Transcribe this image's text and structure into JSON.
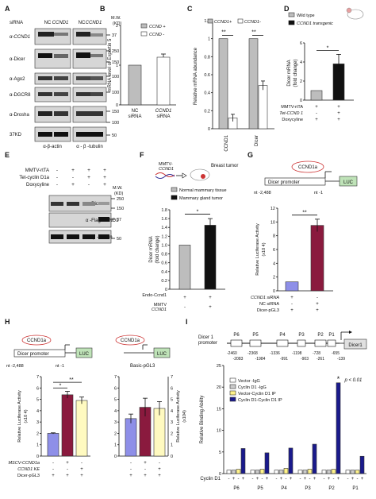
{
  "panels": [
    "A",
    "B",
    "C",
    "D",
    "E",
    "F",
    "G",
    "H",
    "I"
  ],
  "panelA": {
    "siRNA_label": "siRNA",
    "nc": "NC",
    "ccnd1": "CCND1",
    "mw_label": "M.W.\n(KD)",
    "rows": [
      "α-CCND1",
      "α-Dicer",
      "α-Ago2",
      "α-DGCR8",
      "α-Drosha",
      "37KD"
    ],
    "mw": [
      "37",
      "250",
      "150",
      "100",
      "100",
      "150",
      "100",
      "50"
    ],
    "footer_left": "α-β-actin",
    "footer_right": "α - β -tubulin"
  },
  "chart_data": [
    {
      "panel": "B",
      "type": "bar",
      "categories": [
        "NC siRNA",
        "CCND1 siRNA"
      ],
      "values": [
        1.0,
        1.2
      ],
      "errors": [
        0,
        0.08
      ],
      "legend": [
        "CCND +",
        "CCND -"
      ],
      "ylabel": "mRNA level of Exportin 5",
      "ylim": [
        0,
        2
      ],
      "yticks": [
        "0",
        "1",
        "2"
      ]
    },
    {
      "panel": "C",
      "type": "bar",
      "categories": [
        "CCND1",
        "Dicer"
      ],
      "series": [
        {
          "name": "CCND1+",
          "values": [
            1.0,
            1.0
          ]
        },
        {
          "name": "CCND1-",
          "values": [
            0.12,
            0.48
          ]
        }
      ],
      "ylabel": "Relative mRNA abundance",
      "ylim": [
        0,
        1.2
      ],
      "yticks": [
        "0",
        "0.2",
        "0.4",
        "0.6",
        "0.8",
        "1",
        "1.2"
      ],
      "annotations": [
        "**",
        "**"
      ]
    },
    {
      "panel": "D",
      "type": "bar",
      "values": [
        1.0,
        3.8
      ],
      "legend": [
        "Wild type",
        "CCND1 transgenic"
      ],
      "ylabel": "Dicer mRNA (fold change)",
      "ylim": [
        0,
        6
      ],
      "yticks": [
        "0",
        "2",
        "4",
        "6"
      ],
      "rows": [
        {
          "label": "MMTV-rtTA",
          "marks": [
            "+",
            "+"
          ]
        },
        {
          "label": "Tet-CCND 1",
          "marks": [
            "-",
            "+"
          ]
        },
        {
          "label": "Doxycyline",
          "marks": [
            "+",
            "+"
          ]
        }
      ],
      "annotations": [
        "*"
      ]
    },
    {
      "panel": "F",
      "type": "bar",
      "values": [
        1.0,
        1.45
      ],
      "legend": [
        "Normal mammary tissue",
        "Mammary gland tumor"
      ],
      "ylabel": "Dicer mRNA (fold change)",
      "ylim": [
        0,
        1.8
      ],
      "yticks": [
        "0",
        "0.2",
        "0.4",
        "0.6",
        "0.8",
        "1.0",
        "1.2",
        "1.4",
        "1.6",
        "1.8"
      ],
      "rows": [
        {
          "label": "Endo-Ccnd1",
          "marks": [
            "+",
            "+"
          ]
        },
        {
          "label": "MMTV CCND1",
          "marks": [
            "-",
            "+"
          ]
        }
      ],
      "annotations": [
        "*"
      ]
    },
    {
      "panel": "G",
      "type": "bar",
      "values": [
        1.3,
        9.5
      ],
      "ylabel": "Relative Luciferase Activity (x10^4)",
      "ylim": [
        0,
        12
      ],
      "yticks": [
        "0",
        "2",
        "4",
        "6",
        "8",
        "10",
        "12"
      ],
      "rows": [
        {
          "label": "CCND1 siRNA",
          "marks": [
            "+",
            "-"
          ]
        },
        {
          "label": "NC siRNA",
          "marks": [
            "-",
            "+"
          ]
        },
        {
          "label": "Dicer-pGL3",
          "marks": [
            "+",
            "+"
          ]
        }
      ],
      "annotations": [
        "**"
      ]
    },
    {
      "panel": "H-left",
      "type": "bar",
      "values": [
        2.0,
        5.4,
        4.9
      ],
      "ylabel": "Relative Luciferase Activity (x10^4)",
      "ylim": [
        0,
        7
      ],
      "yticks": [
        "0",
        "1",
        "2",
        "3",
        "4",
        "5",
        "6",
        "7"
      ],
      "rows": [
        {
          "label": "MSCV-CCND1a",
          "marks": [
            "-",
            "+",
            "-"
          ]
        },
        {
          "label": "CCND1 KE",
          "marks": [
            "-",
            "-",
            "+"
          ]
        },
        {
          "label": "Dicer-pGL3",
          "marks": [
            "+",
            "+",
            "+"
          ]
        }
      ],
      "annotations": [
        "*",
        "**"
      ]
    },
    {
      "panel": "H-right",
      "type": "bar",
      "values": [
        3.3,
        4.3,
        4.2
      ],
      "ylabel": "Relative Luciferase Activity (x10^4)",
      "ylim": [
        0,
        7
      ],
      "yticks": [
        "0",
        "1",
        "2",
        "3",
        "4",
        "5",
        "6",
        "7"
      ],
      "rows": [
        {
          "label": "",
          "marks": [
            "-",
            "+",
            "-"
          ]
        },
        {
          "label": "",
          "marks": [
            "-",
            "-",
            "+"
          ]
        },
        {
          "label": "",
          "marks": [
            "+",
            "+",
            "+"
          ]
        }
      ]
    },
    {
      "panel": "I",
      "type": "bar",
      "categories": [
        "P6",
        "P5",
        "P4",
        "P3",
        "P2",
        "P1"
      ],
      "series": [
        {
          "name": "Vector -IgG",
          "values": [
            0.8,
            0.8,
            0.8,
            0.8,
            0.8,
            0.8
          ]
        },
        {
          "name": "Cyclin D1 -IgG",
          "values": [
            0.8,
            0.8,
            0.8,
            0.8,
            0.8,
            0.8
          ]
        },
        {
          "name": "Vector-Cyclin D1 IP",
          "values": [
            1.0,
            1.0,
            1.2,
            1.0,
            1.0,
            0.8
          ]
        },
        {
          "name": "Cyclin D1-Cyclin D1 IP",
          "values": [
            5.8,
            4.8,
            5.9,
            6.8,
            21.0,
            4.0
          ]
        }
      ],
      "ylabel": "Relative Binding Ability",
      "ylim": [
        0,
        25
      ],
      "yticks": [
        "0",
        "5",
        "10",
        "15",
        "20",
        "25"
      ],
      "annotation_star": "*",
      "pvalue": "p < 0.01",
      "cyclin_label": "Cyclin D1",
      "cyclin_marks": [
        "-",
        "+",
        "-",
        "+"
      ]
    }
  ],
  "panelE": {
    "rows": [
      {
        "label": "MMTV-rtTA",
        "marks": [
          "-",
          "+",
          "+",
          "+"
        ]
      },
      {
        "label": "Tet-cyclin D1a",
        "marks": [
          "-",
          "-",
          "+",
          "+"
        ]
      },
      {
        "label": "Doxycyline",
        "marks": [
          "-",
          "+",
          "-",
          "+"
        ]
      }
    ],
    "bands": [
      "α -Dicer",
      "α -Flag-CCND1",
      "α - β -tubulin"
    ],
    "mw_label": "M.W.\n(KD)",
    "mw": [
      "250",
      "150",
      "37",
      "50"
    ]
  },
  "panelF": {
    "mmtv": "MMTV-\nCCND1",
    "tumor": "Breast tumor"
  },
  "panelG": {
    "gene": "CCND1a",
    "promoter": "Dicer promoter",
    "luc": "LUC",
    "start": "nt -2,488",
    "end": "nt -1"
  },
  "panelH": {
    "gene": "CCND1a",
    "promoter": "Dicer promoter",
    "luc": "LUC",
    "start": "nt -2,488",
    "end": "nt -1",
    "basic": "Basic-pGL3"
  },
  "panelI": {
    "promoter_label": "Dicer 1\npromoter",
    "gene": "Dicer1",
    "sites": [
      "P6",
      "P5",
      "P4",
      "P3",
      "P2",
      "P1"
    ],
    "coords_top": [
      "-2460",
      "-2368",
      "-1336",
      "-1198",
      "-728",
      "-655"
    ],
    "coords_bottom": [
      "-2083",
      "-1984",
      "-991",
      "-903",
      "-261",
      "-139"
    ]
  }
}
